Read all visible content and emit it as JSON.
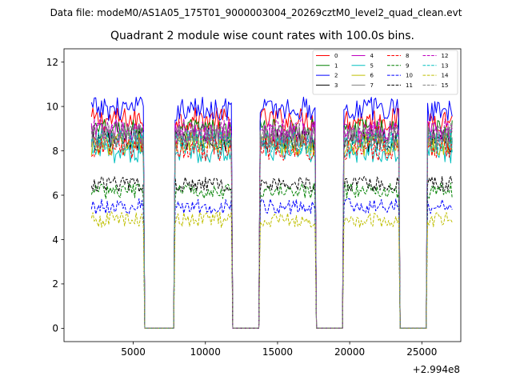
{
  "header": {
    "file_label": "Data file: modeM0/AS1A05_175T01_9000003004_20269cztM0_level2_quad_clean.evt"
  },
  "chart_data": {
    "type": "line",
    "title": "Quadrant 2 module wise count rates with 100.0s bins.",
    "xlabel": "",
    "ylabel": "",
    "x_offset_label": "+2.994e8",
    "xlim": [
      200,
      27700
    ],
    "ylim": [
      -0.6,
      12.6
    ],
    "x_ticks": [
      5000,
      10000,
      15000,
      20000,
      25000
    ],
    "x_tick_labels": [
      "5000",
      "10000",
      "15000",
      "20000",
      "25000"
    ],
    "y_ticks": [
      0,
      2,
      4,
      6,
      8,
      10,
      12
    ],
    "y_tick_labels": [
      "0",
      "2",
      "4",
      "6",
      "8",
      "10",
      "12"
    ],
    "bin_seconds": 100,
    "x_start": 2100,
    "x_end": 27100,
    "on_intervals": [
      [
        2100,
        5700
      ],
      [
        7900,
        11800
      ],
      [
        13800,
        17600
      ],
      [
        19600,
        23400
      ],
      [
        25400,
        27100
      ]
    ],
    "off_level": 0,
    "legend": {
      "placement": "top-right",
      "columns": 4
    },
    "series": [
      {
        "name": "0",
        "color": "#ff0000",
        "dash": "solid",
        "mean": 9.4
      },
      {
        "name": "1",
        "color": "#008000",
        "dash": "solid",
        "mean": 8.9
      },
      {
        "name": "2",
        "color": "#0000ff",
        "dash": "solid",
        "mean": 9.9
      },
      {
        "name": "3",
        "color": "#000000",
        "dash": "solid",
        "mean": 8.5
      },
      {
        "name": "4",
        "color": "#bf00bf",
        "dash": "solid",
        "mean": 8.8
      },
      {
        "name": "5",
        "color": "#00bfbf",
        "dash": "solid",
        "mean": 8.0
      },
      {
        "name": "6",
        "color": "#bfbf00",
        "dash": "solid",
        "mean": 8.3
      },
      {
        "name": "7",
        "color": "#808080",
        "dash": "solid",
        "mean": 8.6
      },
      {
        "name": "8",
        "color": "#ff0000",
        "dash": "dashed",
        "mean": 8.1
      },
      {
        "name": "9",
        "color": "#008000",
        "dash": "dashed",
        "mean": 6.2
      },
      {
        "name": "10",
        "color": "#0000ff",
        "dash": "dashed",
        "mean": 5.5
      },
      {
        "name": "11",
        "color": "#000000",
        "dash": "dashed",
        "mean": 6.5
      },
      {
        "name": "12",
        "color": "#bf00bf",
        "dash": "dashed",
        "mean": 8.9
      },
      {
        "name": "13",
        "color": "#00bfbf",
        "dash": "dashed",
        "mean": 8.4
      },
      {
        "name": "14",
        "color": "#bfbf00",
        "dash": "dashed",
        "mean": 4.9
      },
      {
        "name": "15",
        "color": "#808080",
        "dash": "dashed",
        "mean": 8.7
      }
    ]
  }
}
